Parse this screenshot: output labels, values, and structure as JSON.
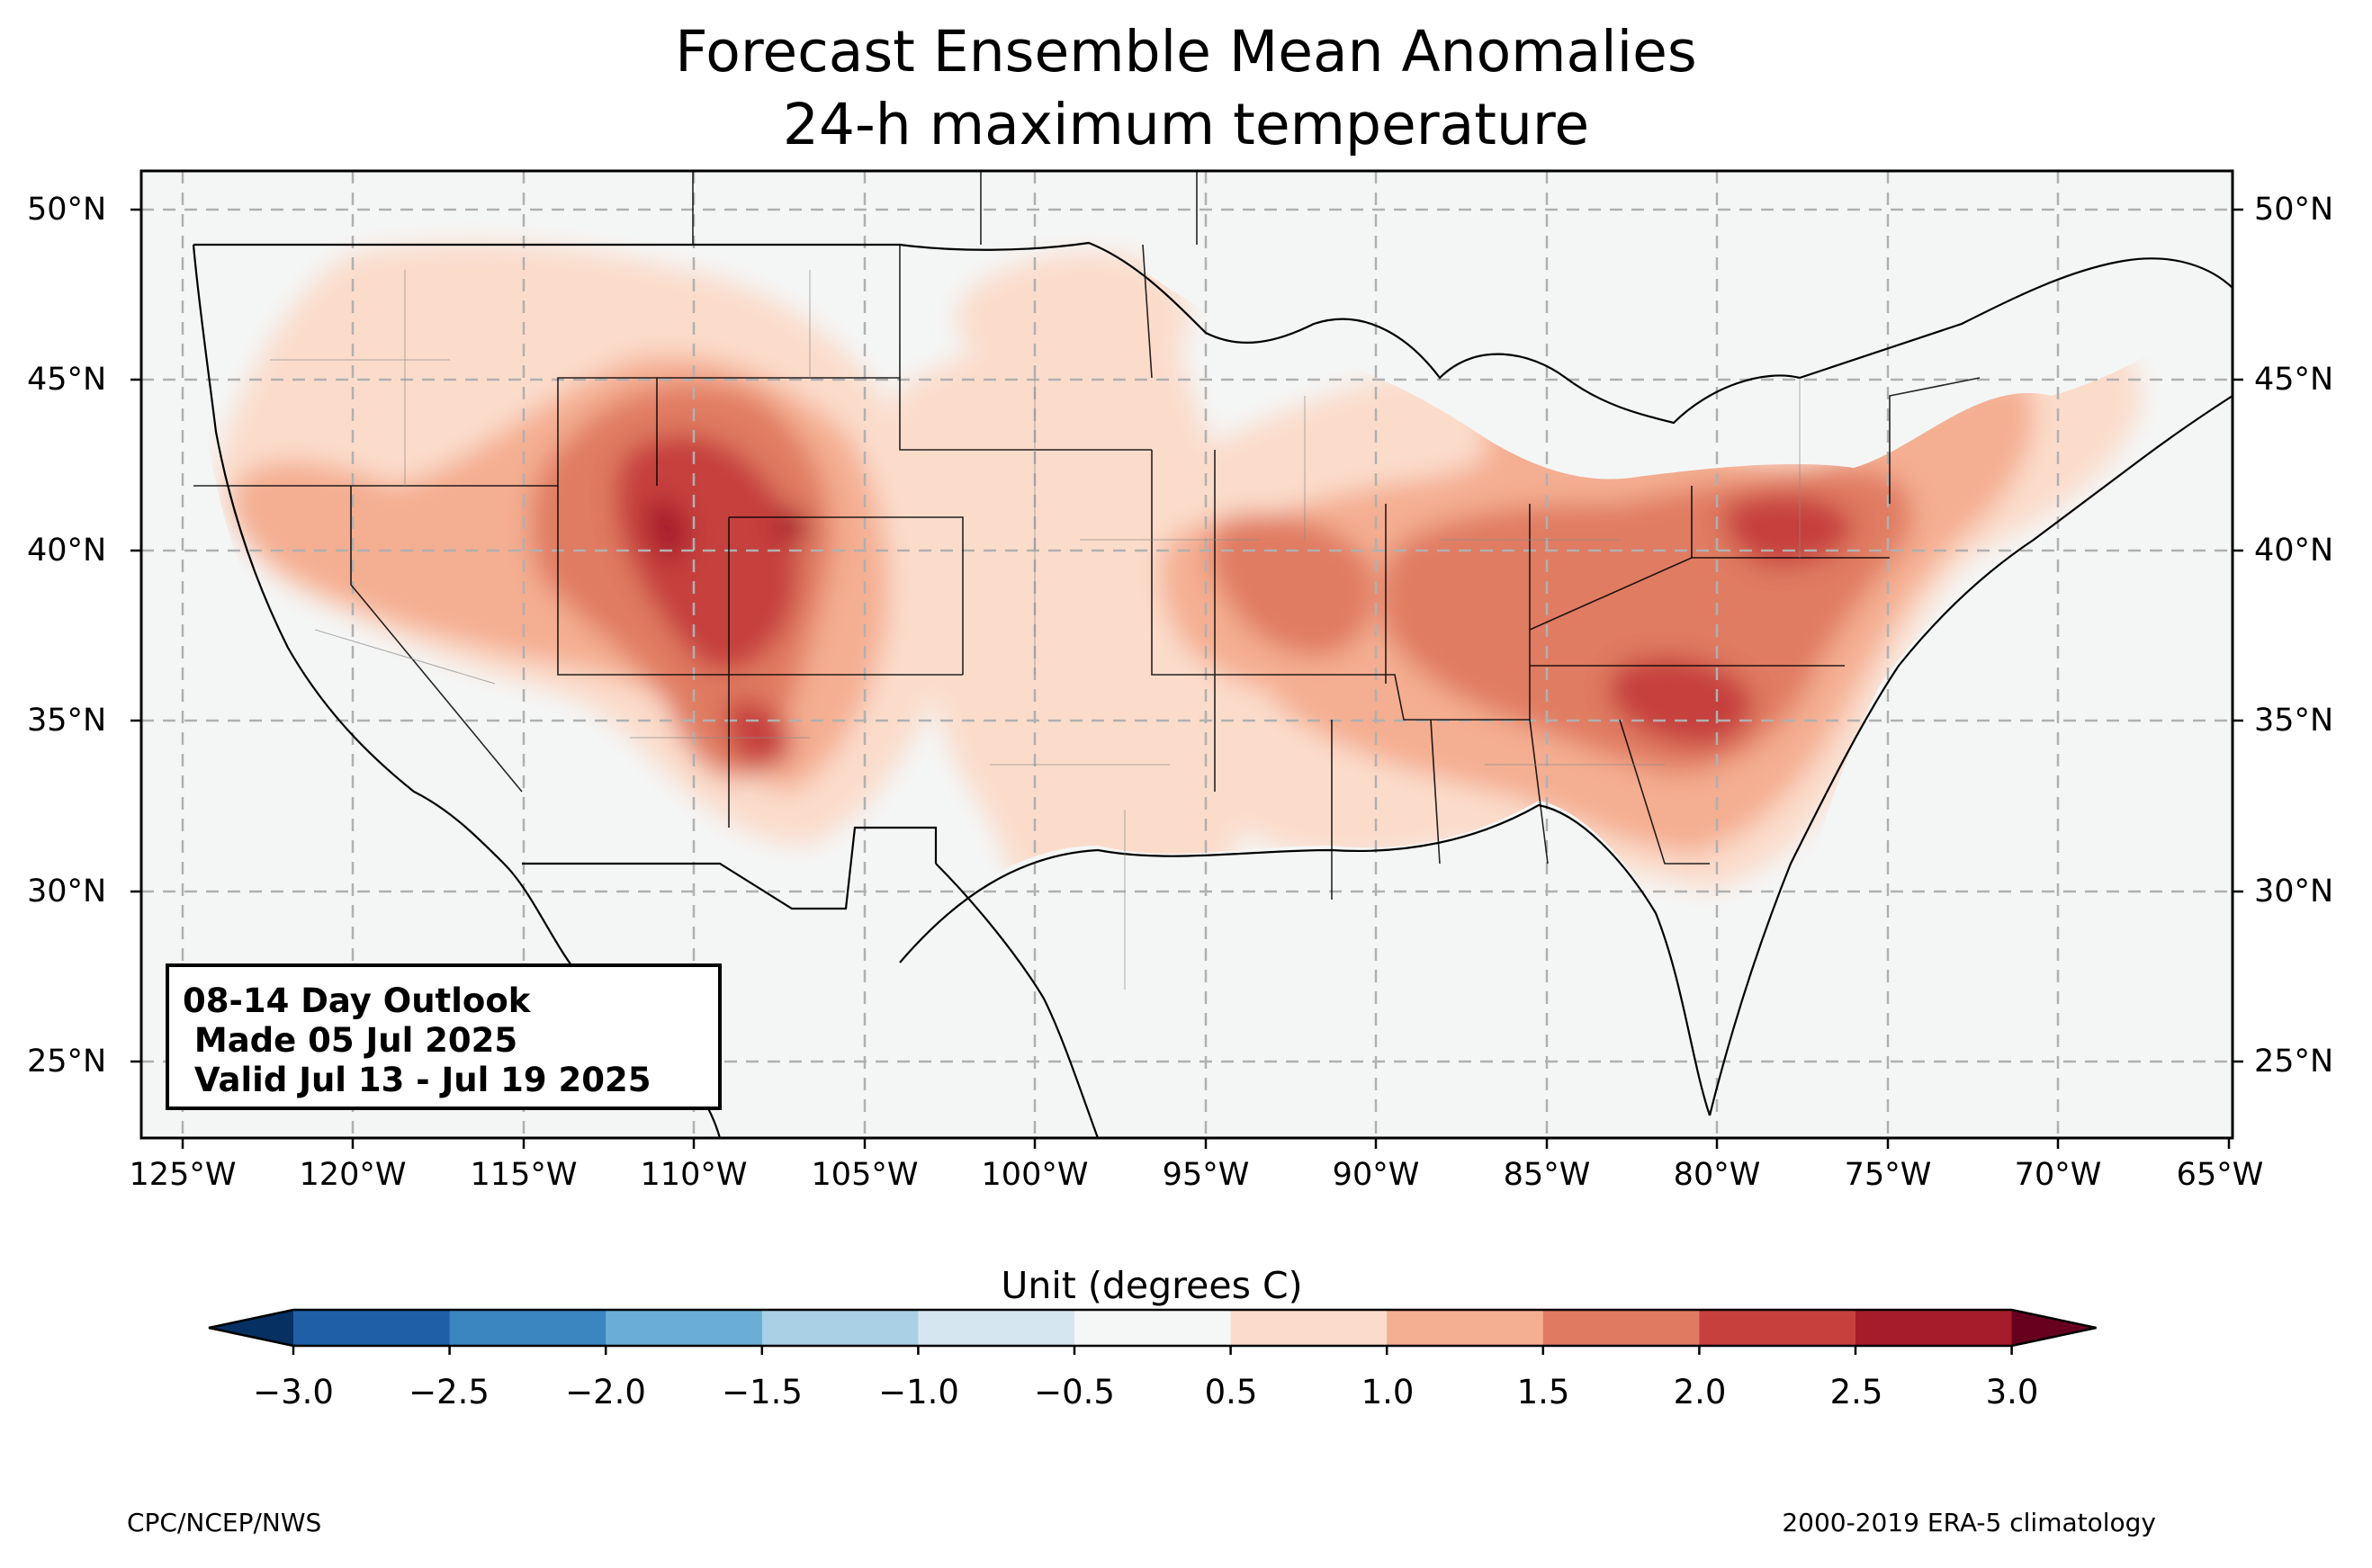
{
  "title": {
    "line1": "Forecast Ensemble Mean Anomalies",
    "line2": "24-h maximum temperature"
  },
  "outlook": {
    "line1": "08-14 Day Outlook",
    "line2": " Made 05 Jul 2025",
    "line3": " Valid Jul 13 - Jul 19 2025"
  },
  "axes": {
    "lat_labels": [
      "50°N",
      "45°N",
      "40°N",
      "35°N",
      "30°N",
      "25°N"
    ],
    "lon_labels": [
      "125°W",
      "120°W",
      "115°W",
      "110°W",
      "105°W",
      "100°W",
      "95°W",
      "90°W",
      "85°W",
      "80°W",
      "75°W",
      "70°W",
      "65°W"
    ]
  },
  "colorbar": {
    "label": "Unit (degrees C)",
    "ticks": [
      "−3.0",
      "−2.5",
      "−2.0",
      "−1.5",
      "−1.0",
      "−0.5",
      "0.5",
      "1.0",
      "1.5",
      "2.0",
      "2.5",
      "3.0"
    ],
    "colors": [
      "#053061",
      "#1f5fa8",
      "#3b85c0",
      "#6baed5",
      "#a9d0e5",
      "#d5e6f0",
      "#f5f7f7",
      "#fbdccb",
      "#f4ae91",
      "#e07b62",
      "#c6413d",
      "#a51c2b",
      "#67001f"
    ]
  },
  "credits": {
    "left": "CPC/NCEP/NWS",
    "right": "2000-2019 ERA-5 climatology"
  }
}
